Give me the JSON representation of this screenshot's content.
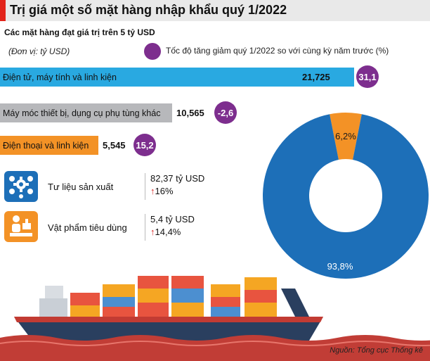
{
  "header": {
    "title": "Trị giá một số mặt hàng nhập khẩu quý 1/2022"
  },
  "subtitle": "Các mặt hàng đạt giá trị trên 5 tỷ USD",
  "unit_note": "(Đơn vị: tỷ USD)",
  "legend": {
    "label": "Tốc độ tăng giảm quý 1/2022 so với cùng kỳ năm trước (%)",
    "color": "#7d2e8e"
  },
  "chart_data": [
    {
      "type": "bar",
      "orientation": "horizontal",
      "categories": [
        "Điện tử, máy tính và linh kiện",
        "Máy móc thiết bị, dụng cụ phụ tùng khác",
        "Điện thoại và linh kiện"
      ],
      "series": [
        {
          "values": [
            21.725,
            10.565,
            5.545
          ],
          "value_labels": [
            "21,725",
            "10,565",
            "5,545"
          ]
        },
        {
          "values": [
            31.1,
            -2.6,
            15.2
          ],
          "value_labels": [
            "31,1",
            "-2,6",
            "15,2"
          ]
        }
      ],
      "colors": [
        "#29a9e1",
        "#b7b8bb",
        "#f39226"
      ]
    },
    {
      "type": "pie",
      "style": "donut",
      "labels": [
        "6,2%",
        "93,8%"
      ],
      "values": [
        6.2,
        93.8
      ],
      "colors": [
        "#f39226",
        "#1d6fb8"
      ]
    }
  ],
  "groups": [
    {
      "name": "Tư liệu sản xuất",
      "value": "82,37 tỷ USD",
      "change": "16%",
      "arrow": "↑",
      "icon": "gear-cluster-icon",
      "color": "#1d6fb8"
    },
    {
      "name": "Vật phẩm tiêu dùng",
      "value": "5,4 tỷ USD",
      "change": "14,4%",
      "arrow": "↑",
      "icon": "consumer-goods-icon",
      "color": "#f39226"
    }
  ],
  "source": "Nguồn: Tổng cục Thống kê"
}
